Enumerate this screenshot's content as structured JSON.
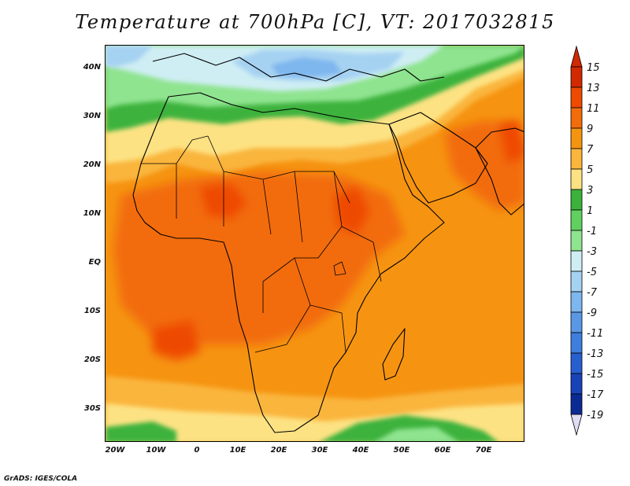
{
  "title": "Temperature at 700hPa [C], VT: 2017032815",
  "map": {
    "lat_labels": [
      "40N",
      "30N",
      "20N",
      "10N",
      "EQ",
      "10S",
      "20S",
      "30S"
    ],
    "lon_labels": [
      "20W",
      "10W",
      "0",
      "10E",
      "20E",
      "30E",
      "40E",
      "50E",
      "60E",
      "70E"
    ],
    "lon_range": [
      -22,
      80
    ],
    "lat_range": [
      -36,
      45
    ]
  },
  "colorbar": {
    "levels": [
      "15",
      "13",
      "11",
      "9",
      "7",
      "5",
      "3",
      "1",
      "-1",
      "-3",
      "-5",
      "-7",
      "-9",
      "-11",
      "-13",
      "-15",
      "-17",
      "-19"
    ],
    "colors": [
      "#d12900",
      "#ee4a00",
      "#f26c0c",
      "#f69412",
      "#fab53c",
      "#fde283",
      "#3cb23c",
      "#60d060",
      "#8fe48f",
      "#cfeef4",
      "#a6d2f2",
      "#7eb6ee",
      "#5a98e6",
      "#3e7ede",
      "#285fd0",
      "#1844b8",
      "#0c2a94",
      "#e0dcf4"
    ]
  },
  "footer": "GrADS: IGES/COLA"
}
